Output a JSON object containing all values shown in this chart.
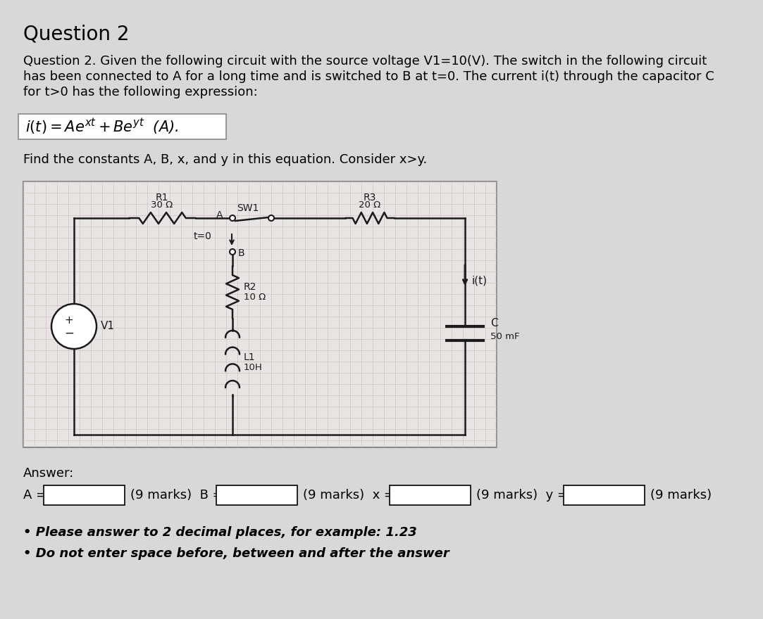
{
  "bg_color": "#d8d8d8",
  "title": "Question 2",
  "title_fontsize": 20,
  "title_fontweight": "normal",
  "description_lines": [
    "Question 2. Given the following circuit with the source voltage V1=10(V). The switch in the following circuit",
    "has been connected to A for a long time and is switched to B at t=0. The current i(t) through the capacitor C",
    "for t>0 has the following expression:"
  ],
  "desc_fontsize": 13,
  "find_text": "Find the constants A, B, x, and y in this equation. Consider x>y.",
  "find_fontsize": 13,
  "answer_label": "Answer:",
  "answer_fontsize": 13,
  "field_fontsize": 13,
  "note1": "• Please answer to 2 decimal places, for example: 1.23",
  "note2": "• Do not enter space before, between and after the answer",
  "note_fontsize": 13,
  "circuit_bg": "#e8e4e4",
  "grid_color": "#ccb8b8",
  "wire_color": "#1a1a1a",
  "input_box_color": "#ffffff"
}
